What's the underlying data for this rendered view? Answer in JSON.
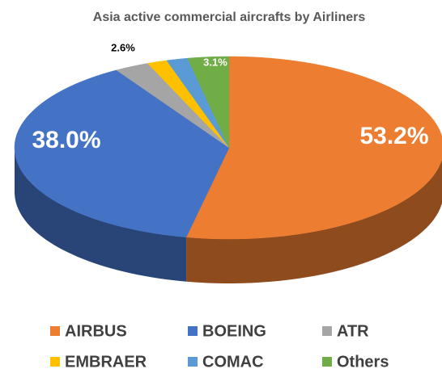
{
  "chart_data": {
    "type": "pie",
    "title": "Asia active commercial aircrafts by Airliners",
    "categories": [
      "AIRBUS",
      "BOEING",
      "ATR",
      "EMBRAER",
      "COMAC",
      "Others"
    ],
    "values": [
      53.2,
      38.0,
      2.6,
      1.5,
      1.6,
      3.1
    ],
    "value_labels": [
      "53.2%",
      "38.0%",
      "2.6%",
      null,
      null,
      "3.1%"
    ],
    "colors": [
      "#ED7D31",
      "#4472C4",
      "#A5A5A5",
      "#FFC000",
      "#5B9BD5",
      "#70AD47"
    ],
    "legend": "bottom"
  }
}
